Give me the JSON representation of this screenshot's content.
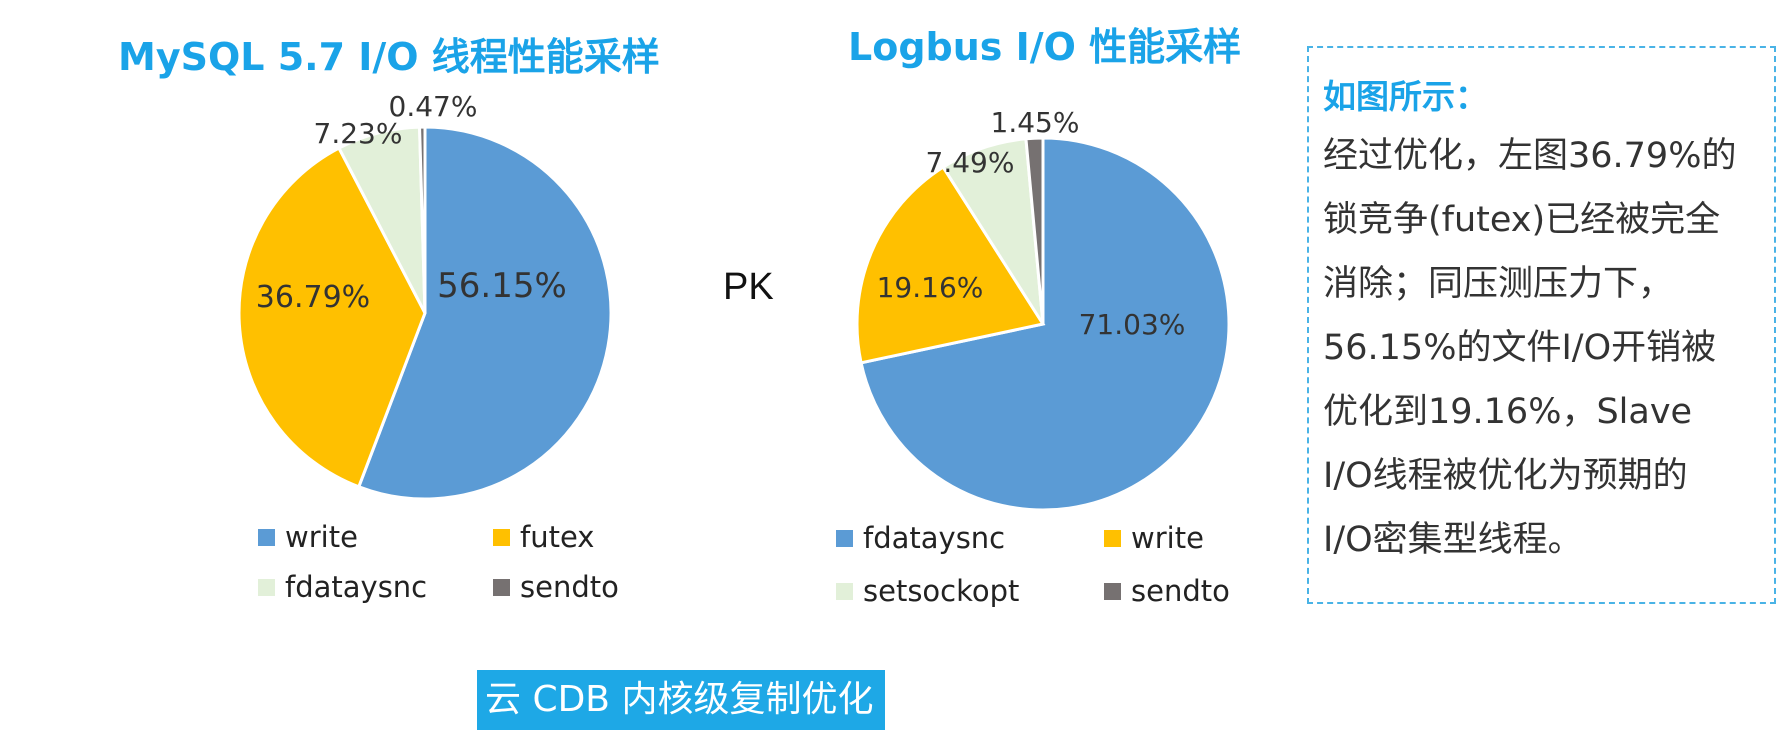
{
  "chart_data": [
    {
      "type": "pie",
      "title": "MySQL 5.7 I/O 线程性能采样",
      "slices": [
        {
          "name": "write",
          "value": 56.15,
          "label": "56.15%",
          "color": "#5b9bd5"
        },
        {
          "name": "futex",
          "value": 36.79,
          "label": "36.79%",
          "color": "#ffc000"
        },
        {
          "name": "fdataysnc",
          "value": 7.23,
          "label": "7.23%",
          "color": "#e2f0d9"
        },
        {
          "name": "sendto",
          "value": 0.47,
          "label": "0.47%",
          "color": "#767171"
        }
      ],
      "legend_placement": "bottom"
    },
    {
      "type": "pie",
      "title": "Logbus I/O 性能采样",
      "slices": [
        {
          "name": "fdataysnc",
          "value": 71.03,
          "label": "71.03%",
          "color": "#5b9bd5"
        },
        {
          "name": "write",
          "value": 19.16,
          "label": "19.16%",
          "color": "#ffc000"
        },
        {
          "name": "setsockopt",
          "value": 7.49,
          "label": "7.49%",
          "color": "#e2f0d9"
        },
        {
          "name": "sendto",
          "value": 1.45,
          "label": "1.45%",
          "color": "#767171"
        }
      ],
      "legend_placement": "bottom"
    }
  ],
  "pk_label": "PK",
  "callout": {
    "heading": "如图所示：",
    "lines": [
      "经过优化，左图36.79%的",
      "锁竞争(futex)已经被完全",
      "消除；同压测压力下，",
      "56.15%的文件I/O开销被",
      "优化到19.16%，Slave",
      "I/O线程被优化为预期的",
      "I/O密集型线程。"
    ]
  },
  "footer_badge": "云 CDB 内核级复制优化"
}
